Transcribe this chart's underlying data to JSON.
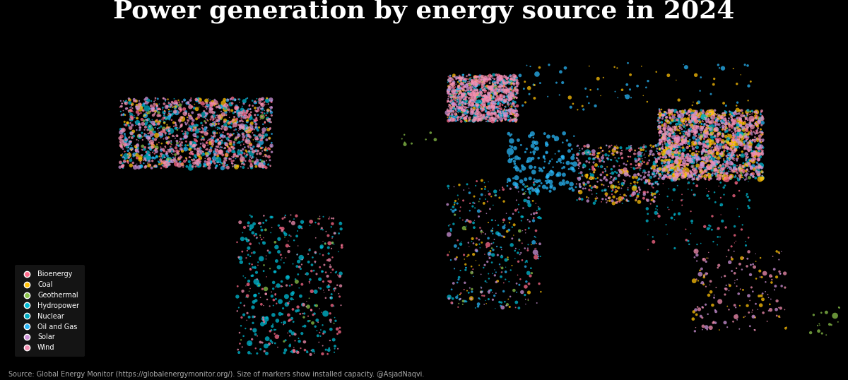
{
  "title": "Power generation by energy source in 2024",
  "title_fontsize": 26,
  "title_color": "white",
  "background_color": "#000000",
  "source_text": "Source: Global Energy Monitor (https://globalenergymonitor.org/). Size of markers show installed capacity. @AsjadNaqvi.",
  "legend_labels": [
    "Bioenergy",
    "Coal",
    "Geothermal",
    "Hydropower",
    "Nuclear",
    "Oil and Gas",
    "Solar",
    "Wind"
  ],
  "legend_colors": [
    "#FF6B8A",
    "#FFC107",
    "#8BC34A",
    "#00BCD4",
    "#00ACC1",
    "#29B6F6",
    "#CE93D8",
    "#F48FB1"
  ],
  "energy_colors": {
    "Bioenergy": "#FF6B8A",
    "Coal": "#FFC107",
    "Geothermal": "#8BC34A",
    "Hydropower": "#00BCD4",
    "Nuclear": "#00ACC1",
    "Oil and Gas": "#29B6F6",
    "Solar": "#CE93D8",
    "Wind": "#F48FB1"
  },
  "legend_bg_color": "#1a1a1a",
  "legend_text_color": "white",
  "source_fontsize": 7,
  "regions": {
    "north_america": [
      -130,
      -65,
      25,
      55
    ],
    "europe": [
      10,
      40,
      45,
      65
    ],
    "south_america": [
      -80,
      -35,
      -55,
      5
    ],
    "east_asia": [
      100,
      145,
      20,
      50
    ],
    "south_asia": [
      65,
      100,
      10,
      35
    ],
    "middle_east": [
      35,
      65,
      15,
      40
    ],
    "africa": [
      10,
      50,
      -35,
      20
    ],
    "australia": [
      115,
      155,
      -45,
      -10
    ],
    "russia": [
      40,
      140,
      50,
      70
    ],
    "west_africa": [
      -20,
      15,
      0,
      20
    ],
    "central_asia": [
      55,
      90,
      35,
      55
    ],
    "southeast_asia": [
      95,
      140,
      -10,
      25
    ],
    "scandinavia": [
      5,
      30,
      55,
      72
    ],
    "iberia": [
      -10,
      5,
      35,
      45
    ],
    "uk": [
      -5,
      2,
      50,
      60
    ],
    "japan_korea": [
      125,
      145,
      30,
      45
    ],
    "new_zealand": [
      165,
      178,
      -47,
      -34
    ]
  },
  "plant_counts": {
    "Bioenergy": 900,
    "Coal": 800,
    "Geothermal": 160,
    "Hydropower": 1100,
    "Nuclear": 220,
    "Oil and Gas": 700,
    "Solar": 1200,
    "Wind": 1400
  },
  "layer_order": [
    "Hydropower",
    "Oil and Gas",
    "Coal",
    "Geothermal",
    "Nuclear",
    "Bioenergy",
    "Solar",
    "Wind"
  ]
}
